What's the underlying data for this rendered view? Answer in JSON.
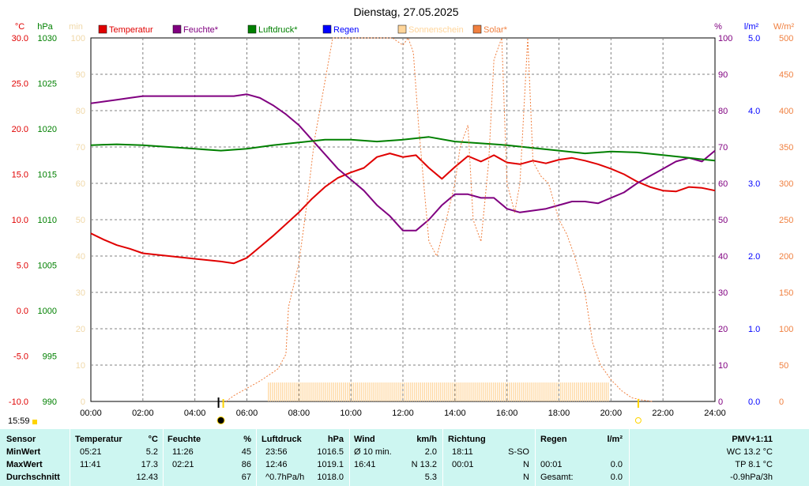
{
  "title": "Dienstag, 27.05.2025",
  "axis_units": {
    "temp": "°C",
    "pressure": "hPa",
    "sun": "min",
    "humidity": "%",
    "rain": "l/m²",
    "solar": "W/m²"
  },
  "legend": [
    {
      "name": "Temperatur",
      "color": "#e00000"
    },
    {
      "name": "Feuchte*",
      "color": "#800080"
    },
    {
      "name": "Luftdruck*",
      "color": "#008000"
    },
    {
      "name": "Regen",
      "color": "#0000ff"
    },
    {
      "name": "Sonnenschein",
      "color": "#ffd59a"
    },
    {
      "name": "Solar*",
      "color": "#f08040"
    }
  ],
  "timestamp": "15:59",
  "chart_data": {
    "type": "line",
    "x_ticks": [
      "00:00",
      "02:00",
      "04:00",
      "06:00",
      "08:00",
      "10:00",
      "12:00",
      "14:00",
      "16:00",
      "18:00",
      "20:00",
      "22:00",
      "24:00"
    ],
    "axes": {
      "temp": {
        "min": -10,
        "max": 30,
        "ticks": [
          "30.0",
          "25.0",
          "20.0",
          "15.0",
          "10.0",
          "5.0",
          "0.0",
          "-5.0",
          "-10.0"
        ],
        "color": "#e00000"
      },
      "pressure": {
        "min": 990,
        "max": 1030,
        "ticks": [
          "1030",
          "1025",
          "1020",
          "1015",
          "1010",
          "1005",
          "1000",
          "995",
          "990"
        ],
        "color": "#008000"
      },
      "sun": {
        "min": 0,
        "max": 100,
        "ticks": [
          "100",
          "90",
          "80",
          "70",
          "60",
          "50",
          "40",
          "30",
          "20",
          "10",
          "0"
        ],
        "color": "#f0d8a8"
      },
      "humidity": {
        "min": 0,
        "max": 100,
        "ticks": [
          "100",
          "90",
          "80",
          "70",
          "60",
          "50",
          "40",
          "30",
          "20",
          "10",
          "0"
        ],
        "color": "#800080"
      },
      "rain": {
        "min": 0,
        "max": 5,
        "ticks": [
          "5.0",
          "4.0",
          "3.0",
          "2.0",
          "1.0",
          "0.0"
        ],
        "color": "#0000ff"
      },
      "solar": {
        "min": 0,
        "max": 500,
        "ticks": [
          "500",
          "450",
          "400",
          "350",
          "300",
          "250",
          "200",
          "150",
          "100",
          "50",
          "0"
        ],
        "color": "#f08040"
      }
    },
    "series": [
      {
        "name": "Temperatur",
        "axis": "temp",
        "color": "#e00000",
        "x": [
          0,
          0.5,
          1,
          1.5,
          2,
          3,
          4,
          5,
          5.5,
          6,
          6.5,
          7,
          7.5,
          8,
          8.5,
          9,
          9.5,
          10,
          10.5,
          11,
          11.5,
          12,
          12.5,
          13,
          13.5,
          14,
          14.5,
          15,
          15.5,
          16,
          16.5,
          17,
          17.5,
          18,
          18.5,
          19,
          19.5,
          20,
          20.5,
          21,
          21.5,
          22,
          22.5,
          23,
          23.5,
          24
        ],
        "y": [
          8.5,
          7.8,
          7.2,
          6.8,
          6.3,
          6.0,
          5.7,
          5.4,
          5.2,
          5.8,
          7.0,
          8.2,
          9.5,
          10.8,
          12.3,
          13.6,
          14.6,
          15.2,
          15.7,
          16.9,
          17.3,
          16.9,
          17.1,
          15.7,
          14.5,
          15.8,
          17.0,
          16.4,
          17.1,
          16.3,
          16.1,
          16.5,
          16.2,
          16.6,
          16.8,
          16.5,
          16.1,
          15.6,
          15.0,
          14.2,
          13.6,
          13.2,
          13.1,
          13.6,
          13.5,
          13.2
        ]
      },
      {
        "name": "Feuchte*",
        "axis": "humidity",
        "color": "#800080",
        "x": [
          0,
          0.5,
          1,
          1.5,
          2,
          3,
          4,
          5,
          5.5,
          6,
          6.5,
          7,
          7.5,
          8,
          8.5,
          9,
          9.5,
          10,
          10.5,
          11,
          11.5,
          12,
          12.5,
          13,
          13.5,
          14,
          14.5,
          15,
          15.5,
          16,
          16.5,
          17,
          17.5,
          18,
          18.5,
          19,
          19.5,
          20,
          20.5,
          21,
          21.5,
          22,
          22.5,
          23,
          23.5,
          24
        ],
        "y": [
          82,
          82.5,
          83,
          83.5,
          84,
          84,
          84,
          84,
          84,
          84.5,
          83.5,
          81.5,
          79,
          76,
          72,
          68,
          64,
          61,
          58,
          54,
          51,
          47,
          47,
          50,
          54,
          57,
          57,
          56,
          56,
          53,
          52,
          52.5,
          53,
          54,
          55,
          55,
          54.5,
          56,
          57.5,
          60,
          62,
          64,
          66,
          67,
          66,
          69
        ]
      },
      {
        "name": "Luftdruck*",
        "axis": "pressure",
        "color": "#008000",
        "x": [
          0,
          1,
          2,
          3,
          4,
          5,
          6,
          7,
          8,
          9,
          10,
          11,
          12,
          13,
          14,
          15,
          16,
          17,
          18,
          19,
          20,
          21,
          22,
          23,
          24
        ],
        "y": [
          1018.2,
          1018.3,
          1018.2,
          1018.0,
          1017.8,
          1017.6,
          1017.8,
          1018.2,
          1018.5,
          1018.8,
          1018.8,
          1018.6,
          1018.8,
          1019.1,
          1018.6,
          1018.4,
          1018.2,
          1017.9,
          1017.6,
          1017.3,
          1017.5,
          1017.4,
          1017.1,
          1016.8,
          1016.5
        ]
      },
      {
        "name": "Solar*",
        "axis": "solar",
        "color": "#f08040",
        "x": [
          5.2,
          5.5,
          6,
          6.5,
          7,
          7.2,
          7.5,
          7.6,
          7.7,
          8,
          8.3,
          8.6,
          9,
          9.3,
          9.5,
          9.8,
          10,
          10.5,
          11,
          11.3,
          11.6,
          12,
          12.2,
          12.4,
          12.6,
          12.8,
          13,
          13.3,
          13.6,
          14,
          14.2,
          14.5,
          14.7,
          15,
          15.3,
          15.5,
          15.8,
          16,
          16.3,
          16.5,
          16.8,
          17,
          17.3,
          17.6,
          18,
          18.3,
          18.6,
          19,
          19.3,
          19.6,
          20,
          20.4,
          20.8,
          21.2,
          21.6
        ],
        "y": [
          0,
          8,
          18,
          28,
          40,
          45,
          65,
          130,
          145,
          190,
          270,
          360,
          440,
          500,
          500,
          500,
          500,
          500,
          500,
          500,
          500,
          490,
          500,
          480,
          380,
          300,
          220,
          200,
          240,
          300,
          350,
          380,
          250,
          220,
          330,
          470,
          500,
          300,
          260,
          300,
          500,
          330,
          310,
          300,
          250,
          230,
          200,
          150,
          80,
          50,
          30,
          15,
          5,
          2,
          0
        ]
      }
    ],
    "sunshine_shading": {
      "x_range": [
        6.83,
        19.93
      ],
      "color": "#ffd59a"
    },
    "markers": [
      {
        "type": "sunrise",
        "x": 5.0
      },
      {
        "type": "sunset",
        "x": 21.05
      }
    ]
  },
  "table": {
    "headers": {
      "sensor": "Sensor",
      "temp": "Temperatur",
      "temp_unit": "°C",
      "hum": "Feuchte",
      "hum_unit": "%",
      "press": "Luftdruck",
      "press_unit": "hPa",
      "wind": "Wind",
      "wind_unit": "km/h",
      "dir": "Richtung",
      "rain": "Regen",
      "rain_unit": "l/m²",
      "pmv": "PMV+1:11"
    },
    "rows": [
      {
        "label": "MinWert",
        "temp_t": "05:21",
        "temp_v": "5.2",
        "hum_t": "11:26",
        "hum_v": "45",
        "press_t": "23:56",
        "press_v": "1016.5",
        "wind_l": "Ø 10 min.",
        "wind_v": "2.0",
        "dir_t": "18:11",
        "dir_v": "S-SO",
        "rain_t": "",
        "rain_v": "",
        "pmv": "WC 13.2 °C"
      },
      {
        "label": "MaxWert",
        "temp_t": "11:41",
        "temp_v": "17.3",
        "hum_t": "02:21",
        "hum_v": "86",
        "press_t": "12:46",
        "press_v": "1019.1",
        "wind_l": "16:41",
        "wind_v": "N 13.2",
        "dir_t": "00:01",
        "dir_v": "N",
        "rain_t": "00:01",
        "rain_v": "0.0",
        "pmv": "TP 8.1 °C"
      },
      {
        "label": "Durchschnitt",
        "temp_t": "",
        "temp_v": "12.43",
        "hum_t": "",
        "hum_v": "67",
        "press_t": "^0.7hPa/h",
        "press_v": "1018.0",
        "wind_l": "",
        "wind_v": "5.3",
        "dir_t": "",
        "dir_v": "N",
        "rain_t": "Gesamt:",
        "rain_v": "0.0",
        "pmv": "-0.9hPa/3h"
      }
    ]
  }
}
